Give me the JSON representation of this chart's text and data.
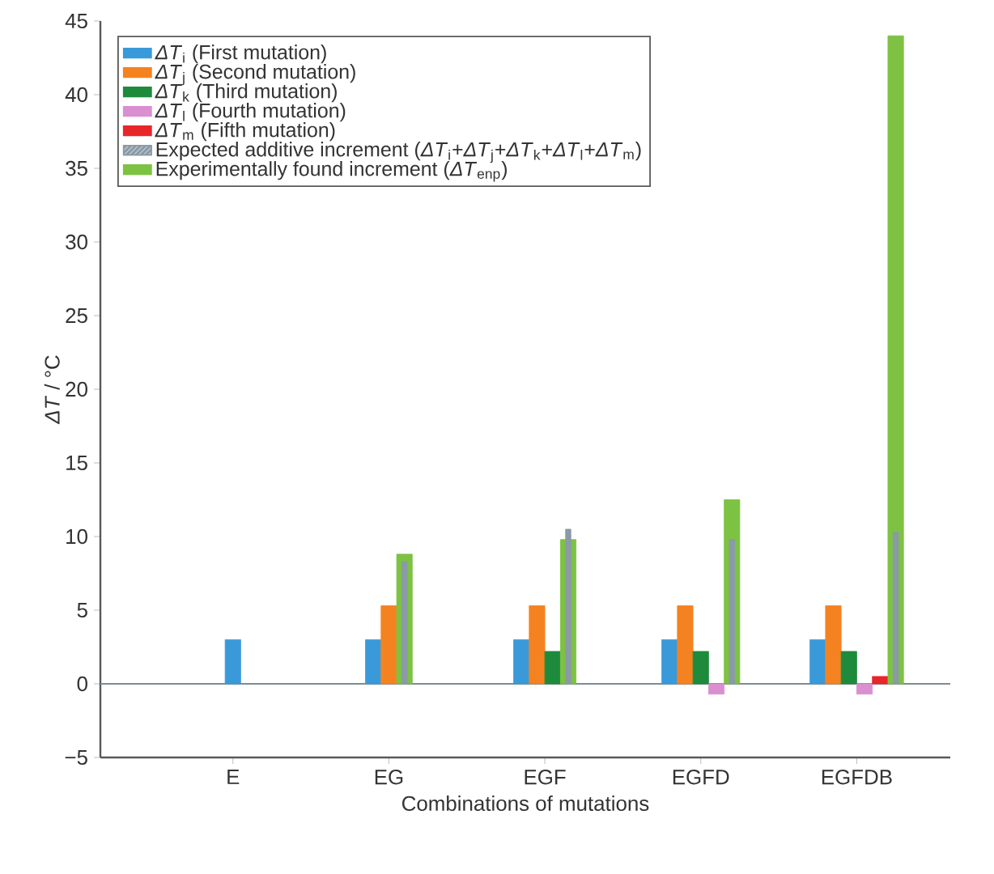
{
  "chart_data": {
    "type": "bar",
    "xlabel": "Combinations of mutations",
    "ylabel": "*ΔT* / °C",
    "categories": [
      "E",
      "EG",
      "EGF",
      "EGFD",
      "EGFDB"
    ],
    "series": [
      {
        "name": "*ΔT*$_{i}$ (First mutation)",
        "color": "#3a9ad9",
        "values": [
          3.0,
          3.0,
          3.0,
          3.0,
          3.0
        ]
      },
      {
        "name": "*ΔT*$_{j}$ (Second mutation)",
        "color": "#f58220",
        "values": [
          null,
          5.3,
          5.3,
          5.3,
          5.3
        ]
      },
      {
        "name": "*ΔT*$_{k}$ (Third mutation)",
        "color": "#1e8b3c",
        "values": [
          null,
          null,
          2.2,
          2.2,
          2.2
        ]
      },
      {
        "name": "*ΔT*$_{l}$ (Fourth mutation)",
        "color": "#d98fd0",
        "values": [
          null,
          null,
          null,
          -0.7,
          -0.7
        ]
      },
      {
        "name": "*ΔT*$_{m}$ (Fifth mutation)",
        "color": "#e8262a",
        "values": [
          null,
          null,
          null,
          null,
          0.5
        ]
      },
      {
        "name": "Expected additive increment (*ΔT*$_{i}$+*ΔT*$_{j}$+*ΔT*$_{k}$+*ΔT*$_{l}$+*ΔT*$_{m}$)",
        "color": "#8a9aa6",
        "values": [
          null,
          8.3,
          10.5,
          9.8,
          10.3
        ]
      },
      {
        "name": "Experimentally found increment (*ΔT*$_{enp}$)",
        "color": "#7dc242",
        "values": [
          null,
          8.8,
          9.8,
          12.5,
          44.0
        ]
      }
    ],
    "ylim": [
      -5,
      45
    ],
    "yticks": [
      {
        "value": -5,
        "label": "−5"
      },
      0,
      5,
      10,
      15,
      20,
      25,
      30,
      35,
      40,
      45
    ],
    "ref_lines": [
      {
        "axis": "y",
        "value": 0,
        "color": "#7b8b97"
      }
    ],
    "legend": "top left"
  }
}
